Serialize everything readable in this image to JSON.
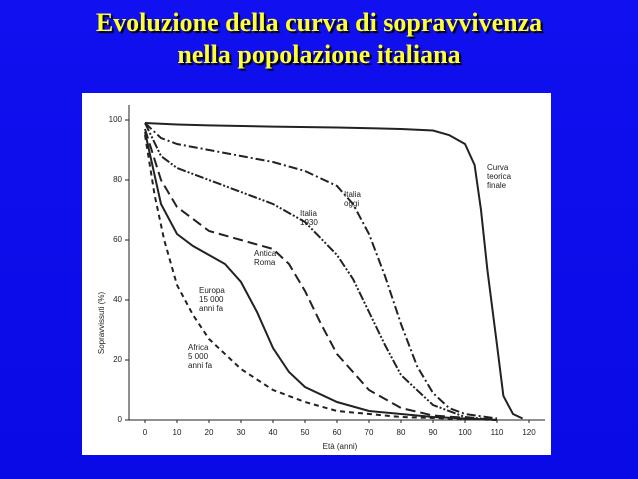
{
  "slide": {
    "title": [
      "Evoluzione della curva di sopravvivenza",
      "nella popolazione italiana"
    ]
  },
  "chart_data": {
    "type": "line",
    "y_label": "Sopravvissuti (%)",
    "x_label": "Età (anni)",
    "xlim": [
      -5,
      125
    ],
    "ylim": [
      0,
      105
    ],
    "xticks": [
      0,
      10,
      20,
      30,
      40,
      50,
      60,
      70,
      80,
      90,
      100,
      110,
      120
    ],
    "yticks": [
      0,
      20,
      40,
      60,
      80,
      100
    ],
    "series": [
      {
        "name": "Curva\nteorica\nfinale",
        "color": "#222222",
        "dash": "none",
        "x": [
          0,
          10,
          20,
          40,
          60,
          80,
          90,
          95,
          100,
          103,
          105,
          107,
          110,
          112,
          115,
          118
        ],
        "values": [
          99,
          98.5,
          98.2,
          97.8,
          97.5,
          97,
          96.5,
          95,
          92,
          85,
          70,
          50,
          25,
          8,
          2,
          0.5
        ]
      },
      {
        "name": "Italia\noggi",
        "color": "#222222",
        "dash": "9 3 2 3",
        "x": [
          0,
          5,
          10,
          20,
          30,
          40,
          50,
          60,
          65,
          70,
          75,
          80,
          85,
          90,
          95,
          100,
          110
        ],
        "values": [
          99,
          94,
          92,
          90,
          88,
          86,
          83,
          78,
          72,
          62,
          48,
          32,
          18,
          9,
          4,
          2,
          0.5
        ]
      },
      {
        "name": "Italia\n1930",
        "color": "#222222",
        "dash": "9 2 2 2 2 2",
        "x": [
          0,
          5,
          10,
          20,
          30,
          40,
          50,
          60,
          65,
          70,
          75,
          80,
          90,
          100,
          110
        ],
        "values": [
          99,
          88,
          84,
          80,
          76,
          72,
          66,
          55,
          47,
          36,
          25,
          15,
          5,
          1,
          0
        ]
      },
      {
        "name": "Antica\nRoma",
        "color": "#222222",
        "dash": "10 5",
        "x": [
          0,
          5,
          10,
          20,
          30,
          40,
          45,
          50,
          55,
          60,
          70,
          80,
          90,
          110
        ],
        "values": [
          97,
          80,
          71,
          63,
          60,
          57,
          52,
          43,
          32,
          22,
          10,
          4,
          1.5,
          0
        ]
      },
      {
        "name": "Europa\n15 000\nanni fa",
        "color": "#222222",
        "dash": "none",
        "x": [
          0,
          5,
          10,
          15,
          20,
          25,
          30,
          35,
          40,
          45,
          50,
          60,
          70,
          90,
          110
        ],
        "values": [
          96,
          72,
          62,
          58,
          55,
          52,
          46,
          36,
          24,
          16,
          11,
          6,
          3,
          1,
          0
        ]
      },
      {
        "name": "Africa\n5 000\nanni fa",
        "color": "#222222",
        "dash": "5 4",
        "x": [
          0,
          3,
          6,
          10,
          15,
          20,
          30,
          40,
          50,
          60,
          80,
          110
        ],
        "values": [
          95,
          75,
          60,
          45,
          35,
          27,
          17,
          10,
          6,
          3,
          1,
          0
        ]
      }
    ]
  }
}
